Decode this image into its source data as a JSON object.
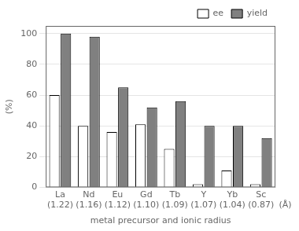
{
  "chart_data": {
    "type": "bar",
    "categories": [
      "La\n(1.22)",
      "Nd\n(1.16)",
      "Eu\n(1.12)",
      "Gd\n(1.10)",
      "Tb\n(1.09)",
      "Y\n(1.07)",
      "Yb\n(1.04)",
      "Sc\n(0.87)"
    ],
    "series": [
      {
        "name": "ee",
        "color": "#ffffff",
        "values": [
          60,
          40,
          36,
          41,
          25,
          2,
          11,
          2
        ]
      },
      {
        "name": "yield",
        "color": "#808080",
        "values": [
          100,
          98,
          65,
          52,
          56,
          40,
          40,
          32
        ]
      }
    ],
    "xlabel": "metal precursor and ionic radius",
    "ylabel": "(%)",
    "ylim": [
      0,
      105
    ],
    "yticks": [
      0,
      20,
      40,
      60,
      80,
      100
    ],
    "grid": true,
    "legend": "upper right",
    "annotations": [
      "(Å)"
    ]
  }
}
